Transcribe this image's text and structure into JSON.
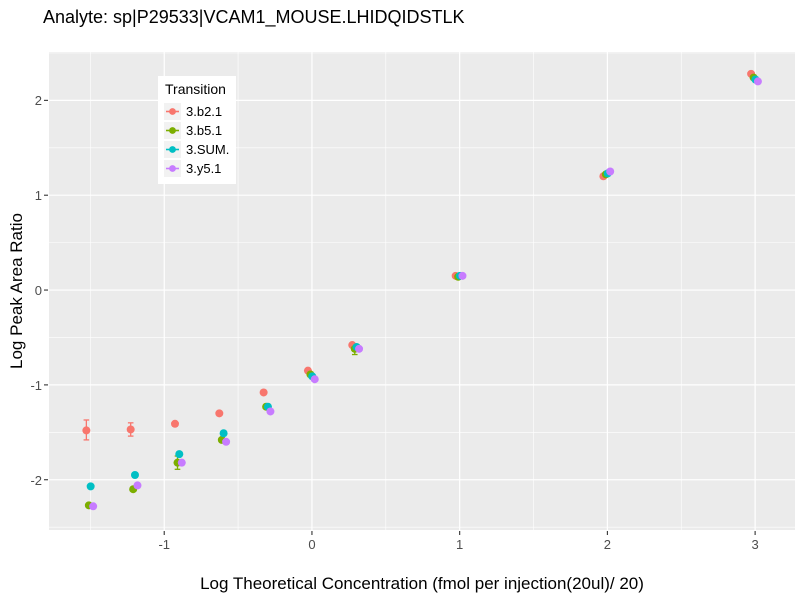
{
  "title": "Analyte: sp|P29533|VCAM1_MOUSE.LHIDQIDSTLK",
  "axes": {
    "x": {
      "label": "Log Theoretical Concentration (fmol per injection(20ul)/ 20)",
      "ticks": [
        -1,
        0,
        1,
        2,
        3
      ],
      "minor_ticks": [
        -1.5,
        -0.5,
        0.5,
        1.5,
        2.5
      ]
    },
    "y": {
      "label": "Log Peak Area Ratio",
      "ticks": [
        2,
        1,
        0,
        -1,
        -2
      ],
      "minor_ticks": [
        2.5,
        1.5,
        0.5,
        -0.5,
        -1.5,
        -2.5
      ]
    }
  },
  "legend": {
    "title": "Transition",
    "items": [
      {
        "label": "3.b2.1",
        "color": "#F8766D"
      },
      {
        "label": "3.b5.1",
        "color": "#7CAE00"
      },
      {
        "label": "3.SUM.",
        "color": "#00BFC4"
      },
      {
        "label": "3.y5.1",
        "color": "#C77CFF"
      }
    ]
  },
  "colors": {
    "panel_bg": "#EBEBEB",
    "grid": "#FFFFFF",
    "tick_text": "#4D4D4D",
    "tick_mark": "#333333",
    "legend_key_bg": "#F2F2F2"
  },
  "chart_data": {
    "type": "scatter",
    "title": "Analyte: sp|P29533|VCAM1_MOUSE.LHIDQIDSTLK",
    "xlabel": "Log Theoretical Concentration (fmol per injection(20ul)/ 20)",
    "ylabel": "Log Peak Area Ratio",
    "xlim": [
      -1.78,
      3.27
    ],
    "ylim": [
      -2.53,
      2.51
    ],
    "grid": true,
    "legend_position": "inside-top-left",
    "x": [
      -1.5,
      -1.2,
      -0.9,
      -0.6,
      -0.3,
      0,
      0.3,
      1,
      2,
      3
    ],
    "series": [
      {
        "name": "3.b2.1",
        "color": "#F8766D",
        "values": [
          -1.48,
          -1.47,
          -1.41,
          -1.3,
          -1.08,
          -0.85,
          -0.58,
          0.15,
          1.2,
          2.28
        ],
        "error_bars": [
          {
            "x": -1.5,
            "lo": -1.58,
            "hi": -1.37
          },
          {
            "x": -1.2,
            "lo": -1.54,
            "hi": -1.4
          }
        ]
      },
      {
        "name": "3.b5.1",
        "color": "#7CAE00",
        "values": [
          -2.27,
          -2.1,
          -1.82,
          -1.58,
          -1.23,
          -0.89,
          -0.62,
          0.14,
          1.22,
          2.24
        ],
        "error_bars": [
          {
            "x": -0.9,
            "lo": -1.89,
            "hi": -1.75
          },
          {
            "x": 0.3,
            "lo": -0.68,
            "hi": -0.58
          }
        ]
      },
      {
        "name": "3.SUM.",
        "color": "#00BFC4",
        "values": [
          -2.07,
          -1.95,
          -1.73,
          -1.51,
          -1.23,
          -0.91,
          -0.6,
          0.15,
          1.23,
          2.22
        ],
        "error_bars": []
      },
      {
        "name": "3.y5.1",
        "color": "#C77CFF",
        "values": [
          -2.28,
          -2.06,
          -1.82,
          -1.6,
          -1.28,
          -0.94,
          -0.62,
          0.15,
          1.25,
          2.2
        ],
        "error_bars": []
      }
    ]
  }
}
